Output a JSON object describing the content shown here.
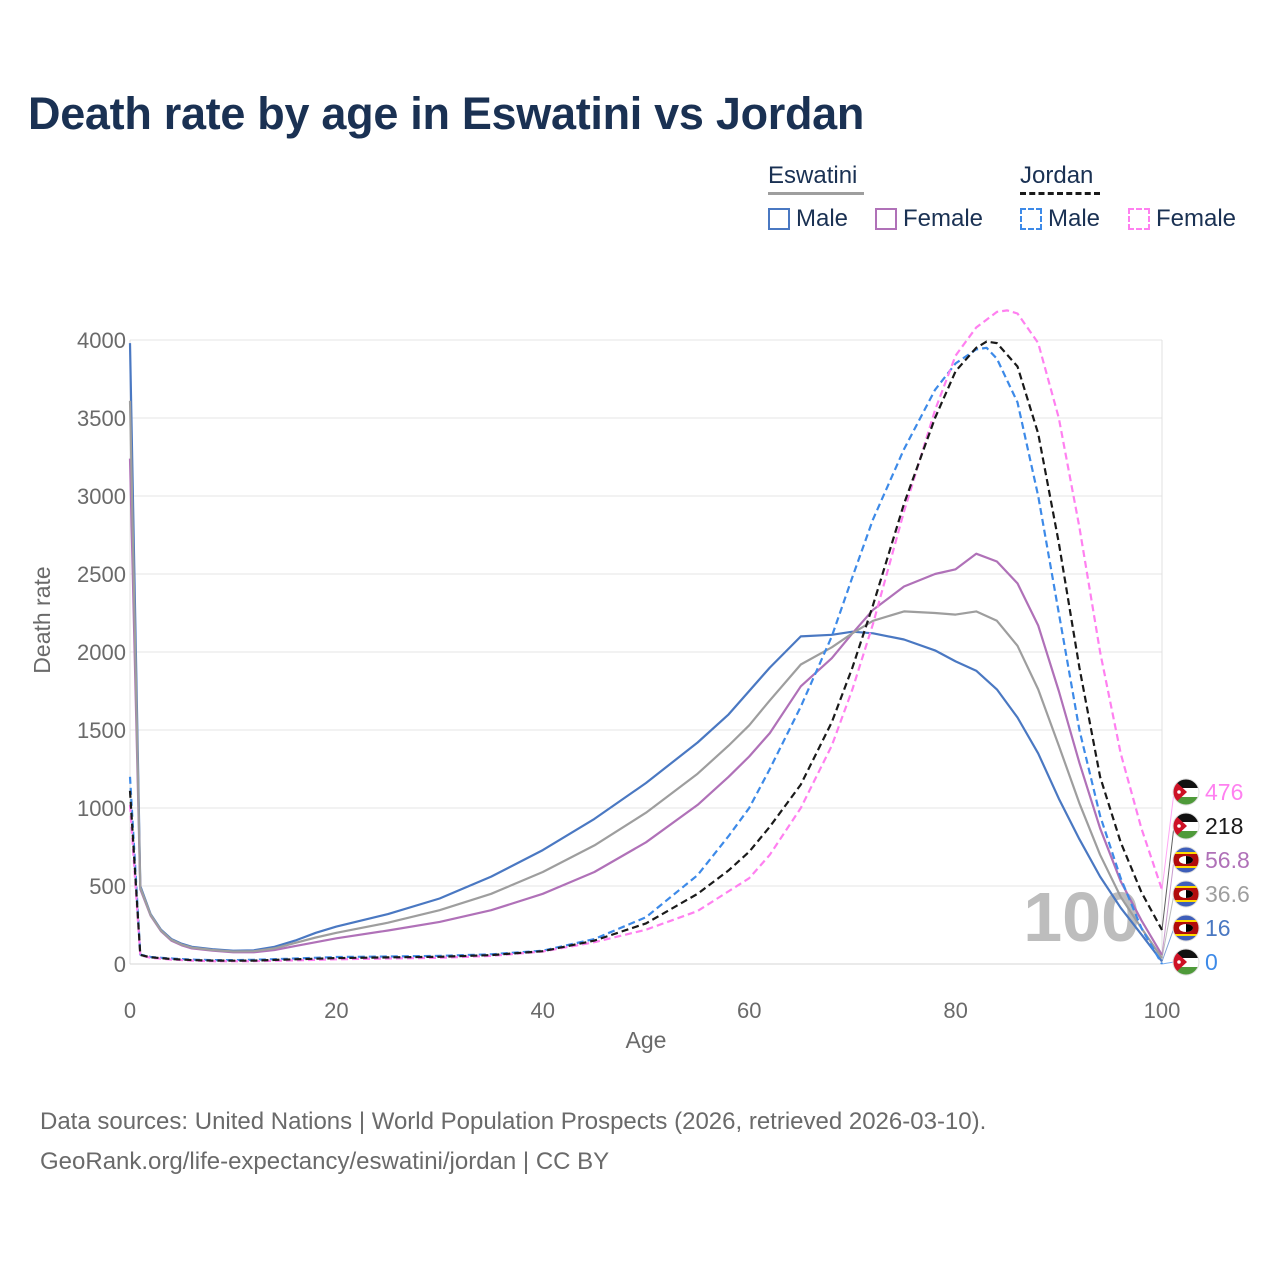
{
  "title": "Death rate by age in Eswatini vs Jordan",
  "legend": {
    "groups": [
      {
        "name": "Eswatini",
        "line_style": "solid",
        "line_color": "#9e9e9e",
        "items": [
          {
            "label": "Male",
            "color": "#4a78c2",
            "style": "solid"
          },
          {
            "label": "Female",
            "color": "#b071b8",
            "style": "solid"
          }
        ]
      },
      {
        "name": "Jordan",
        "line_style": "dashed",
        "line_color": "#1a1a1a",
        "items": [
          {
            "label": "Male",
            "color": "#3d8ae8",
            "style": "dashed"
          },
          {
            "label": "Female",
            "color": "#ff80f0",
            "style": "dashed"
          }
        ]
      }
    ]
  },
  "chart_data": {
    "type": "line",
    "title": "Death rate by age in Eswatini vs Jordan",
    "xlabel": "Age",
    "ylabel": "Death rate",
    "xlim": [
      0,
      100
    ],
    "ylim": [
      0,
      4000
    ],
    "xticks": [
      0,
      20,
      40,
      60,
      80,
      100
    ],
    "yticks": [
      0,
      500,
      1000,
      1500,
      2000,
      2500,
      3000,
      3500,
      4000
    ],
    "grid": true,
    "current_age_label": "100",
    "series": [
      {
        "name": "Eswatini Male",
        "country": "Eswatini",
        "sex": "Male",
        "color": "#4a78c2",
        "style": "solid",
        "end_label": "16",
        "points": [
          [
            0,
            3980
          ],
          [
            1,
            500
          ],
          [
            2,
            320
          ],
          [
            3,
            220
          ],
          [
            4,
            160
          ],
          [
            5,
            130
          ],
          [
            6,
            110
          ],
          [
            8,
            95
          ],
          [
            10,
            85
          ],
          [
            12,
            88
          ],
          [
            14,
            110
          ],
          [
            16,
            150
          ],
          [
            18,
            200
          ],
          [
            20,
            240
          ],
          [
            25,
            320
          ],
          [
            30,
            420
          ],
          [
            35,
            560
          ],
          [
            40,
            730
          ],
          [
            45,
            930
          ],
          [
            50,
            1160
          ],
          [
            55,
            1420
          ],
          [
            58,
            1600
          ],
          [
            60,
            1750
          ],
          [
            62,
            1900
          ],
          [
            65,
            2100
          ],
          [
            68,
            2110
          ],
          [
            70,
            2130
          ],
          [
            72,
            2120
          ],
          [
            75,
            2080
          ],
          [
            78,
            2010
          ],
          [
            80,
            1940
          ],
          [
            82,
            1880
          ],
          [
            84,
            1760
          ],
          [
            86,
            1580
          ],
          [
            88,
            1350
          ],
          [
            90,
            1060
          ],
          [
            92,
            800
          ],
          [
            94,
            560
          ],
          [
            96,
            360
          ],
          [
            98,
            190
          ],
          [
            100,
            16
          ]
        ]
      },
      {
        "name": "Eswatini Female",
        "country": "Eswatini",
        "sex": "Female",
        "color": "#b071b8",
        "style": "solid",
        "end_label": "56.8",
        "points": [
          [
            0,
            3240
          ],
          [
            1,
            480
          ],
          [
            2,
            310
          ],
          [
            3,
            210
          ],
          [
            4,
            150
          ],
          [
            5,
            120
          ],
          [
            6,
            100
          ],
          [
            8,
            85
          ],
          [
            10,
            75
          ],
          [
            12,
            75
          ],
          [
            14,
            90
          ],
          [
            16,
            115
          ],
          [
            18,
            140
          ],
          [
            20,
            165
          ],
          [
            25,
            215
          ],
          [
            30,
            270
          ],
          [
            35,
            345
          ],
          [
            40,
            450
          ],
          [
            45,
            590
          ],
          [
            50,
            780
          ],
          [
            55,
            1020
          ],
          [
            58,
            1200
          ],
          [
            60,
            1330
          ],
          [
            62,
            1480
          ],
          [
            65,
            1780
          ],
          [
            68,
            1960
          ],
          [
            70,
            2120
          ],
          [
            72,
            2270
          ],
          [
            75,
            2420
          ],
          [
            78,
            2500
          ],
          [
            80,
            2530
          ],
          [
            82,
            2630
          ],
          [
            84,
            2580
          ],
          [
            86,
            2440
          ],
          [
            88,
            2170
          ],
          [
            90,
            1750
          ],
          [
            92,
            1290
          ],
          [
            94,
            870
          ],
          [
            96,
            530
          ],
          [
            98,
            280
          ],
          [
            100,
            57
          ]
        ]
      },
      {
        "name": "Eswatini Total",
        "country": "Eswatini",
        "sex": "Total",
        "color": "#9e9e9e",
        "style": "solid",
        "end_label": "36.6",
        "points": [
          [
            0,
            3610
          ],
          [
            1,
            490
          ],
          [
            2,
            315
          ],
          [
            3,
            215
          ],
          [
            4,
            155
          ],
          [
            5,
            125
          ],
          [
            6,
            105
          ],
          [
            8,
            90
          ],
          [
            10,
            80
          ],
          [
            12,
            82
          ],
          [
            14,
            100
          ],
          [
            16,
            135
          ],
          [
            18,
            170
          ],
          [
            20,
            200
          ],
          [
            25,
            265
          ],
          [
            30,
            345
          ],
          [
            35,
            450
          ],
          [
            40,
            590
          ],
          [
            45,
            760
          ],
          [
            50,
            970
          ],
          [
            55,
            1220
          ],
          [
            58,
            1400
          ],
          [
            60,
            1530
          ],
          [
            62,
            1690
          ],
          [
            65,
            1920
          ],
          [
            68,
            2030
          ],
          [
            70,
            2120
          ],
          [
            72,
            2200
          ],
          [
            75,
            2260
          ],
          [
            78,
            2250
          ],
          [
            80,
            2240
          ],
          [
            82,
            2260
          ],
          [
            84,
            2200
          ],
          [
            86,
            2040
          ],
          [
            88,
            1760
          ],
          [
            90,
            1400
          ],
          [
            92,
            1030
          ],
          [
            94,
            700
          ],
          [
            96,
            430
          ],
          [
            98,
            230
          ],
          [
            100,
            37
          ]
        ]
      },
      {
        "name": "Jordan Male",
        "country": "Jordan",
        "sex": "Male",
        "color": "#3d8ae8",
        "style": "dashed",
        "end_label": "0",
        "points": [
          [
            0,
            1200
          ],
          [
            1,
            60
          ],
          [
            2,
            45
          ],
          [
            4,
            35
          ],
          [
            6,
            28
          ],
          [
            8,
            25
          ],
          [
            10,
            25
          ],
          [
            12,
            27
          ],
          [
            15,
            33
          ],
          [
            20,
            45
          ],
          [
            25,
            48
          ],
          [
            30,
            52
          ],
          [
            35,
            62
          ],
          [
            40,
            85
          ],
          [
            45,
            160
          ],
          [
            50,
            300
          ],
          [
            55,
            570
          ],
          [
            58,
            820
          ],
          [
            60,
            1000
          ],
          [
            62,
            1250
          ],
          [
            65,
            1650
          ],
          [
            68,
            2100
          ],
          [
            70,
            2480
          ],
          [
            72,
            2850
          ],
          [
            75,
            3300
          ],
          [
            78,
            3680
          ],
          [
            80,
            3850
          ],
          [
            82,
            3940
          ],
          [
            83,
            3950
          ],
          [
            84,
            3880
          ],
          [
            86,
            3600
          ],
          [
            88,
            3000
          ],
          [
            90,
            2250
          ],
          [
            92,
            1500
          ],
          [
            94,
            950
          ],
          [
            96,
            550
          ],
          [
            98,
            230
          ],
          [
            100,
            0
          ]
        ]
      },
      {
        "name": "Jordan Female",
        "country": "Jordan",
        "sex": "Female",
        "color": "#ff80f0",
        "style": "dashed",
        "end_label": "476",
        "points": [
          [
            0,
            1020
          ],
          [
            1,
            55
          ],
          [
            2,
            40
          ],
          [
            4,
            28
          ],
          [
            6,
            22
          ],
          [
            8,
            18
          ],
          [
            10,
            17
          ],
          [
            12,
            18
          ],
          [
            15,
            22
          ],
          [
            20,
            30
          ],
          [
            25,
            35
          ],
          [
            30,
            40
          ],
          [
            35,
            52
          ],
          [
            40,
            80
          ],
          [
            45,
            140
          ],
          [
            50,
            220
          ],
          [
            55,
            340
          ],
          [
            60,
            550
          ],
          [
            62,
            700
          ],
          [
            65,
            1000
          ],
          [
            68,
            1400
          ],
          [
            70,
            1760
          ],
          [
            72,
            2180
          ],
          [
            75,
            2900
          ],
          [
            78,
            3550
          ],
          [
            80,
            3900
          ],
          [
            82,
            4080
          ],
          [
            84,
            4180
          ],
          [
            85,
            4190
          ],
          [
            86,
            4170
          ],
          [
            88,
            3980
          ],
          [
            90,
            3500
          ],
          [
            92,
            2800
          ],
          [
            94,
            2000
          ],
          [
            96,
            1350
          ],
          [
            98,
            870
          ],
          [
            100,
            476
          ]
        ]
      },
      {
        "name": "Jordan Total",
        "country": "Jordan",
        "sex": "Total",
        "color": "#1a1a1a",
        "style": "dashed",
        "end_label": "218",
        "points": [
          [
            0,
            1110
          ],
          [
            1,
            58
          ],
          [
            2,
            43
          ],
          [
            4,
            32
          ],
          [
            6,
            25
          ],
          [
            8,
            22
          ],
          [
            10,
            21
          ],
          [
            12,
            22
          ],
          [
            15,
            28
          ],
          [
            20,
            38
          ],
          [
            25,
            42
          ],
          [
            30,
            46
          ],
          [
            35,
            57
          ],
          [
            40,
            82
          ],
          [
            45,
            150
          ],
          [
            50,
            260
          ],
          [
            55,
            450
          ],
          [
            58,
            600
          ],
          [
            60,
            720
          ],
          [
            62,
            880
          ],
          [
            65,
            1150
          ],
          [
            68,
            1550
          ],
          [
            70,
            1900
          ],
          [
            72,
            2300
          ],
          [
            75,
            2950
          ],
          [
            78,
            3500
          ],
          [
            80,
            3800
          ],
          [
            82,
            3950
          ],
          [
            83,
            3990
          ],
          [
            84,
            3980
          ],
          [
            86,
            3830
          ],
          [
            88,
            3400
          ],
          [
            90,
            2700
          ],
          [
            92,
            1900
          ],
          [
            94,
            1200
          ],
          [
            96,
            780
          ],
          [
            98,
            460
          ],
          [
            100,
            218
          ]
        ]
      }
    ]
  },
  "footer": {
    "line1": "Data sources: United Nations | World Population Prospects (2026, retrieved 2026-03-10).",
    "line2": "GeoRank.org/life-expectancy/eswatini/jordan | CC BY"
  }
}
